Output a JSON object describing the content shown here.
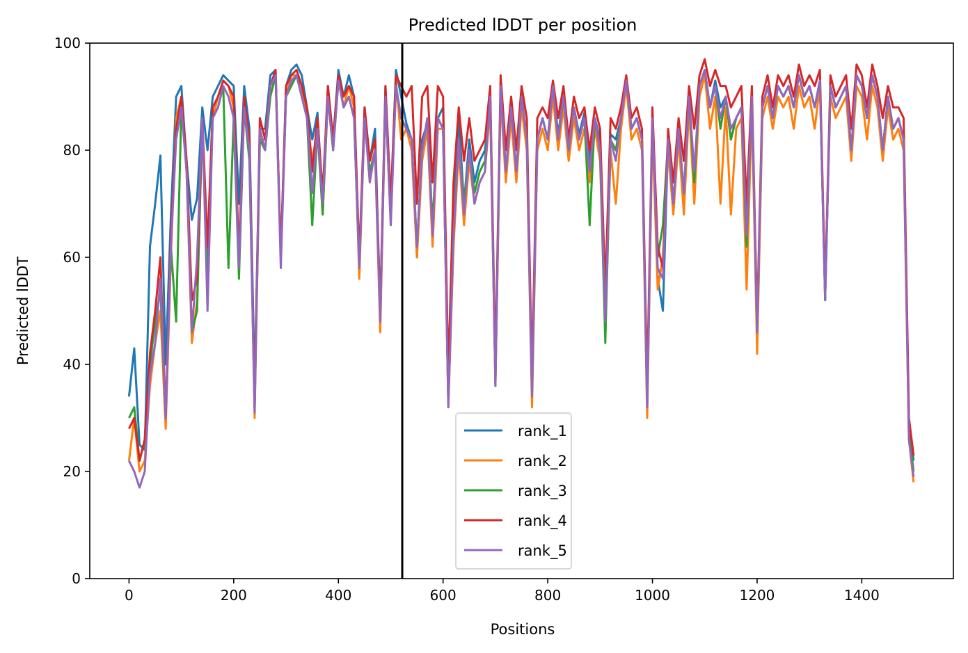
{
  "chart_data": {
    "type": "line",
    "title": "Predicted lDDT per position",
    "xlabel": "Positions",
    "ylabel": "Predicted lDDT",
    "xlim": [
      -75,
      1575
    ],
    "ylim": [
      0,
      100
    ],
    "xticks": [
      0,
      200,
      400,
      600,
      800,
      1000,
      1200,
      1400
    ],
    "yticks": [
      0,
      20,
      40,
      60,
      80,
      100
    ],
    "grid": false,
    "legend_position": "lower-center",
    "vline_x": 522,
    "vline_color": "#000000",
    "colors": {
      "rank_1": "#1f77b4",
      "rank_2": "#ff7f0e",
      "rank_3": "#2ca02c",
      "rank_4": "#d62728",
      "rank_5": "#9467bd"
    },
    "x": [
      0,
      10,
      20,
      30,
      40,
      50,
      60,
      70,
      80,
      90,
      100,
      110,
      120,
      130,
      140,
      150,
      160,
      170,
      180,
      190,
      200,
      210,
      220,
      230,
      240,
      250,
      260,
      270,
      280,
      290,
      300,
      310,
      320,
      330,
      340,
      350,
      360,
      370,
      380,
      390,
      400,
      410,
      420,
      430,
      440,
      450,
      460,
      470,
      480,
      490,
      500,
      510,
      520,
      530,
      540,
      550,
      560,
      570,
      580,
      590,
      600,
      610,
      620,
      630,
      640,
      650,
      660,
      670,
      680,
      690,
      700,
      710,
      720,
      730,
      740,
      750,
      760,
      770,
      780,
      790,
      800,
      810,
      820,
      830,
      840,
      850,
      860,
      870,
      880,
      890,
      900,
      910,
      920,
      930,
      940,
      950,
      960,
      970,
      980,
      990,
      1000,
      1010,
      1020,
      1030,
      1040,
      1050,
      1060,
      1070,
      1080,
      1090,
      1100,
      1110,
      1120,
      1130,
      1140,
      1150,
      1160,
      1170,
      1180,
      1190,
      1200,
      1210,
      1220,
      1230,
      1240,
      1250,
      1260,
      1270,
      1280,
      1290,
      1300,
      1310,
      1320,
      1330,
      1340,
      1350,
      1360,
      1370,
      1380,
      1390,
      1400,
      1410,
      1420,
      1430,
      1440,
      1450,
      1460,
      1470,
      1480,
      1490,
      1499
    ],
    "series": [
      {
        "name": "rank_1",
        "values": [
          34,
          43,
          25,
          24,
          62,
          70,
          79,
          40,
          68,
          90,
          92,
          78,
          67,
          71,
          88,
          80,
          90,
          92,
          94,
          93,
          92,
          70,
          92,
          84,
          36,
          84,
          84,
          94,
          95,
          60,
          92,
          95,
          96,
          94,
          88,
          82,
          87,
          70,
          92,
          82,
          95,
          90,
          94,
          90,
          58,
          88,
          78,
          84,
          50,
          92,
          70,
          95,
          90,
          85,
          82,
          60,
          82,
          85,
          64,
          86,
          88,
          33,
          68,
          86,
          70,
          82,
          74,
          78,
          80,
          90,
          38,
          92,
          76,
          88,
          76,
          90,
          82,
          36,
          82,
          86,
          82,
          92,
          83,
          90,
          80,
          88,
          83,
          87,
          78,
          86,
          82,
          48,
          83,
          82,
          86,
          93,
          84,
          86,
          82,
          34,
          86,
          56,
          50,
          82,
          70,
          84,
          70,
          90,
          72,
          92,
          95,
          88,
          93,
          88,
          90,
          82,
          86,
          88,
          68,
          90,
          44,
          88,
          92,
          86,
          92,
          90,
          92,
          88,
          94,
          90,
          92,
          88,
          93,
          52,
          92,
          88,
          90,
          92,
          80,
          94,
          92,
          86,
          94,
          90,
          80,
          90,
          84,
          86,
          82,
          30,
          22
        ]
      },
      {
        "name": "rank_2",
        "values": [
          22,
          30,
          20,
          22,
          36,
          44,
          50,
          28,
          60,
          86,
          90,
          76,
          44,
          52,
          84,
          60,
          86,
          90,
          93,
          92,
          88,
          60,
          90,
          80,
          30,
          82,
          82,
          92,
          94,
          60,
          90,
          94,
          94,
          92,
          86,
          78,
          84,
          68,
          90,
          80,
          94,
          88,
          92,
          88,
          56,
          86,
          74,
          80,
          46,
          90,
          66,
          93,
          82,
          84,
          80,
          60,
          78,
          84,
          62,
          84,
          84,
          32,
          62,
          80,
          66,
          78,
          70,
          74,
          76,
          88,
          36,
          90,
          74,
          86,
          74,
          88,
          80,
          32,
          80,
          84,
          80,
          90,
          80,
          88,
          78,
          86,
          80,
          84,
          74,
          84,
          78,
          46,
          80,
          70,
          84,
          92,
          82,
          84,
          80,
          30,
          84,
          54,
          60,
          80,
          68,
          82,
          68,
          88,
          70,
          90,
          94,
          84,
          90,
          70,
          88,
          68,
          84,
          86,
          54,
          88,
          42,
          86,
          90,
          84,
          90,
          88,
          90,
          84,
          92,
          88,
          90,
          84,
          92,
          54,
          90,
          86,
          88,
          90,
          78,
          92,
          90,
          82,
          92,
          88,
          78,
          88,
          82,
          84,
          80,
          26,
          18
        ]
      },
      {
        "name": "rank_3",
        "values": [
          30,
          32,
          22,
          26,
          40,
          48,
          54,
          30,
          62,
          48,
          88,
          78,
          46,
          50,
          86,
          56,
          86,
          88,
          92,
          58,
          86,
          56,
          88,
          78,
          32,
          82,
          80,
          90,
          94,
          60,
          90,
          92,
          94,
          90,
          86,
          66,
          84,
          68,
          90,
          80,
          93,
          88,
          90,
          86,
          58,
          86,
          76,
          80,
          50,
          90,
          68,
          92,
          86,
          84,
          82,
          62,
          80,
          86,
          66,
          86,
          84,
          33,
          66,
          82,
          70,
          80,
          72,
          76,
          78,
          90,
          36,
          92,
          76,
          88,
          76,
          90,
          82,
          34,
          82,
          86,
          82,
          92,
          82,
          90,
          80,
          88,
          82,
          86,
          66,
          86,
          80,
          44,
          82,
          80,
          86,
          93,
          84,
          86,
          82,
          32,
          86,
          60,
          66,
          82,
          70,
          84,
          72,
          90,
          74,
          92,
          95,
          88,
          92,
          84,
          90,
          82,
          86,
          88,
          62,
          90,
          46,
          88,
          92,
          86,
          92,
          90,
          92,
          88,
          94,
          90,
          92,
          88,
          93,
          52,
          92,
          88,
          90,
          92,
          80,
          94,
          92,
          86,
          94,
          90,
          80,
          90,
          84,
          86,
          82,
          28,
          20
        ]
      },
      {
        "name": "rank_4",
        "values": [
          28,
          30,
          22,
          26,
          42,
          50,
          60,
          30,
          64,
          84,
          90,
          78,
          52,
          56,
          86,
          62,
          88,
          90,
          93,
          92,
          90,
          60,
          90,
          82,
          32,
          86,
          82,
          92,
          95,
          60,
          92,
          94,
          95,
          92,
          88,
          76,
          86,
          72,
          92,
          82,
          94,
          90,
          92,
          90,
          60,
          88,
          78,
          82,
          50,
          92,
          70,
          94,
          92,
          90,
          92,
          70,
          90,
          92,
          74,
          92,
          90,
          38,
          74,
          88,
          78,
          86,
          78,
          80,
          82,
          92,
          40,
          94,
          80,
          90,
          80,
          92,
          86,
          38,
          86,
          88,
          86,
          93,
          86,
          92,
          82,
          90,
          86,
          88,
          80,
          88,
          84,
          54,
          86,
          84,
          88,
          94,
          86,
          88,
          84,
          36,
          88,
          62,
          58,
          84,
          74,
          86,
          78,
          92,
          84,
          94,
          97,
          92,
          95,
          92,
          92,
          88,
          90,
          92,
          70,
          92,
          48,
          90,
          94,
          88,
          94,
          92,
          94,
          90,
          96,
          92,
          94,
          92,
          95,
          54,
          94,
          90,
          92,
          94,
          84,
          96,
          94,
          88,
          96,
          92,
          86,
          92,
          88,
          88,
          86,
          30,
          23
        ]
      },
      {
        "name": "rank_5",
        "values": [
          22,
          20,
          17,
          20,
          38,
          44,
          56,
          30,
          62,
          82,
          88,
          76,
          46,
          60,
          86,
          50,
          86,
          88,
          92,
          90,
          86,
          58,
          88,
          80,
          31,
          84,
          80,
          92,
          94,
          58,
          90,
          93,
          94,
          90,
          86,
          72,
          84,
          70,
          90,
          80,
          93,
          88,
          90,
          86,
          58,
          86,
          74,
          80,
          48,
          90,
          66,
          92,
          86,
          84,
          82,
          62,
          80,
          86,
          64,
          86,
          84,
          32,
          64,
          82,
          68,
          80,
          70,
          74,
          76,
          90,
          36,
          92,
          76,
          88,
          76,
          90,
          82,
          34,
          82,
          86,
          82,
          92,
          82,
          90,
          80,
          88,
          82,
          86,
          76,
          86,
          80,
          48,
          82,
          78,
          86,
          93,
          84,
          86,
          82,
          32,
          86,
          58,
          56,
          82,
          70,
          84,
          72,
          90,
          76,
          92,
          95,
          88,
          92,
          86,
          90,
          84,
          86,
          88,
          64,
          90,
          46,
          88,
          92,
          86,
          92,
          90,
          92,
          88,
          94,
          90,
          92,
          88,
          93,
          52,
          92,
          88,
          90,
          92,
          80,
          94,
          92,
          86,
          94,
          90,
          80,
          90,
          84,
          86,
          82,
          26,
          19
        ]
      }
    ]
  }
}
